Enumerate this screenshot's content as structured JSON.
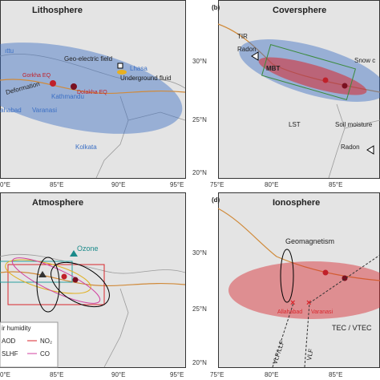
{
  "lithosphere": {
    "title": "Lithosphere",
    "xticks": [
      "0°E",
      "85°E",
      "90°E",
      "95°E"
    ],
    "labels": {
      "chittu": "ıttu",
      "geo": "Geo-electric field",
      "lhasa": "Lhasa",
      "fluid": "Underground fluid",
      "gorkha": "Gorkha EQ",
      "dolakha": "Dolakha EQ",
      "kathmandu": "Kathmandu",
      "deformation": "Deformation",
      "allahabad": "ahabad",
      "varanasi": "Varanasi",
      "kolkata": "Kolkata"
    }
  },
  "coversphere": {
    "tag": "(b)",
    "title": "Coversphere",
    "yticks": [
      "30°N",
      "25°N",
      "20°N"
    ],
    "xticks": [
      "75°E",
      "80°E",
      "85°E"
    ],
    "labels": {
      "tir": "TIR",
      "radon1": "Radon",
      "mbt": "MBT",
      "snow": "Snow c",
      "lst": "LST",
      "soil": "Soil moisture",
      "radon2": "Radon"
    }
  },
  "atmosphere": {
    "title": "Atmosphere",
    "xticks": [
      "0°E",
      "85°E",
      "90°E",
      "95°E"
    ],
    "labels": {
      "ozone": "Ozone",
      "humidity": "ir humidity",
      "aod": "AOD",
      "no2": "NO₂",
      "slhf": "SLHF",
      "co": "CO"
    }
  },
  "ionosphere": {
    "tag": "(d)",
    "title": "Ionosphere",
    "yticks": [
      "30°N",
      "25°N",
      "20°N"
    ],
    "xticks": [
      "75°E",
      "80°E",
      "85°E"
    ],
    "labels": {
      "geomag": "Geomagnetism",
      "allahabad": "Allahabad",
      "varanasi": "Varanasi",
      "tec": "TEC / VTEC",
      "vlflf": "VLF/LLF",
      "vlf": "VLF"
    }
  }
}
